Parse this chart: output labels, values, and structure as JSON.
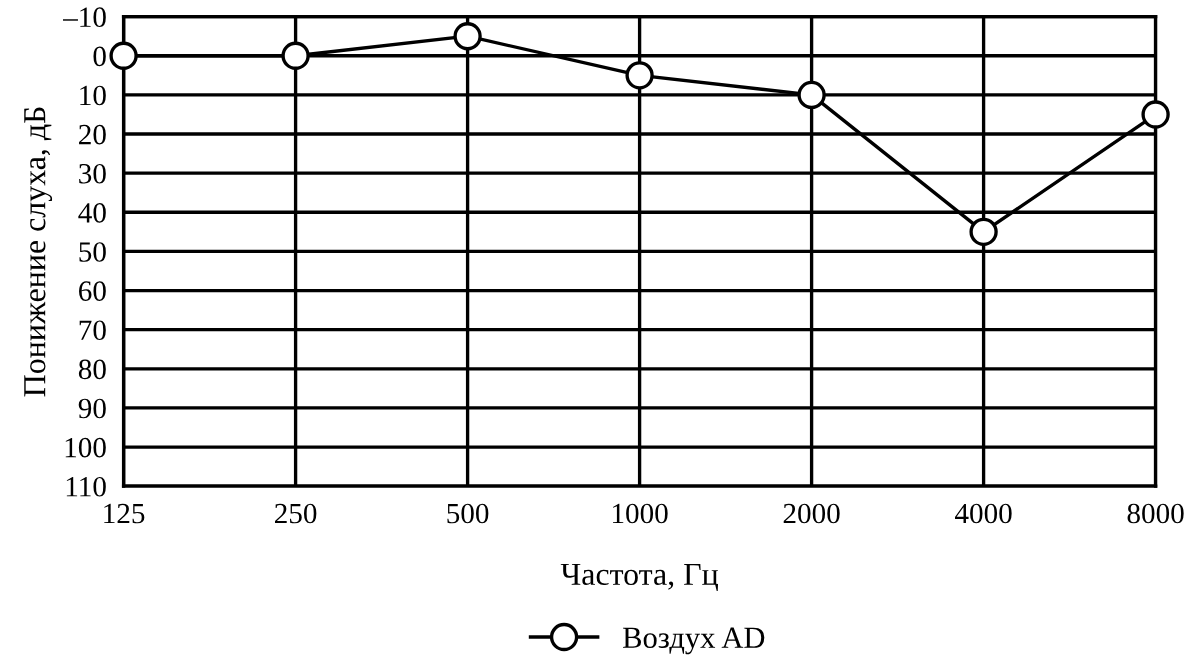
{
  "chart_data": {
    "type": "line",
    "xlabel": "Частота, Гц",
    "ylabel": "Понижение слуха, дБ",
    "x": [
      125,
      250,
      500,
      1000,
      2000,
      4000,
      8000
    ],
    "series": [
      {
        "name": "Воздух AD",
        "color": "#000000",
        "values": [
          0,
          0,
          -5,
          5,
          10,
          45,
          15
        ]
      }
    ],
    "log": "x",
    "xlim": [
      125,
      8000
    ],
    "xticks": [
      125,
      250,
      500,
      1000,
      2000,
      4000,
      8000
    ],
    "ylim": [
      110,
      -10
    ],
    "yticks": [
      {
        "value": -10,
        "label": "–10"
      },
      0,
      10,
      20,
      30,
      40,
      50,
      60,
      70,
      80,
      90,
      100,
      110
    ],
    "grid": true,
    "legend": "bottom",
    "marker": "circle",
    "line_style": "solid"
  }
}
